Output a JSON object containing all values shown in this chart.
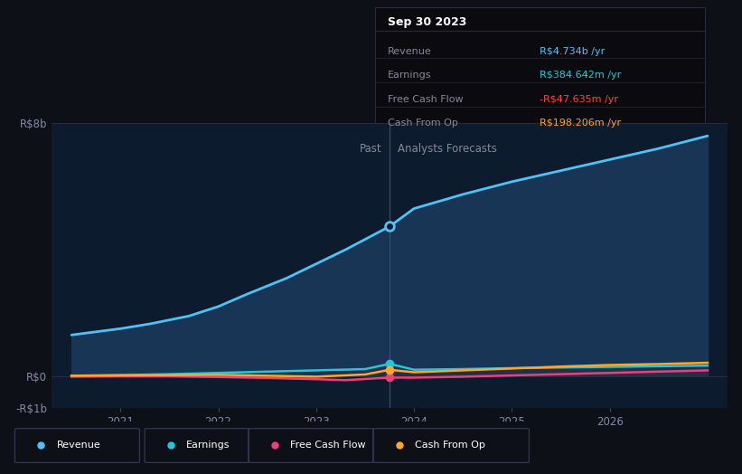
{
  "bg_color": "#0d1117",
  "plot_bg_color": "#0d1b2e",
  "title": "Sep 30 2023",
  "past_label": "Past",
  "forecast_label": "Analysts Forecasts",
  "divider_x": 2023.75,
  "tooltip": {
    "date": "Sep 30 2023",
    "revenue_label": "Revenue",
    "revenue_value": "R$4.734b",
    "earnings_label": "Earnings",
    "earnings_value": "R$384.642m",
    "fcf_label": "Free Cash Flow",
    "fcf_value": "-R$47.635m",
    "cashop_label": "Cash From Op",
    "cashop_value": "R$198.206m"
  },
  "ylim": [
    -1000000000.0,
    8000000000.0
  ],
  "yticks": [
    -1000000000.0,
    0,
    8000000000.0
  ],
  "ytick_labels": [
    "-R$1b",
    "R$0",
    "R$8b"
  ],
  "xlim": [
    2020.3,
    2027.2
  ],
  "xticks": [
    2021,
    2022,
    2023,
    2024,
    2025,
    2026
  ],
  "revenue": {
    "color": "#4fc3f7",
    "fill_color": "#1a3a5c",
    "label": "Revenue",
    "x": [
      2020.5,
      2021.0,
      2021.3,
      2021.7,
      2022.0,
      2022.3,
      2022.7,
      2023.0,
      2023.3,
      2023.75,
      2024.0,
      2024.5,
      2025.0,
      2025.5,
      2026.0,
      2026.5,
      2027.0
    ],
    "y": [
      1300000000.0,
      1500000000.0,
      1650000000.0,
      1900000000.0,
      2200000000.0,
      2600000000.0,
      3100000000.0,
      3550000000.0,
      4000000000.0,
      4734000000.0,
      5300000000.0,
      5750000000.0,
      6150000000.0,
      6500000000.0,
      6850000000.0,
      7200000000.0,
      7600000000.0
    ]
  },
  "earnings": {
    "color": "#26c6da",
    "label": "Earnings",
    "x": [
      2020.5,
      2021.0,
      2021.5,
      2022.0,
      2022.5,
      2023.0,
      2023.5,
      2023.75,
      2024.0,
      2024.5,
      2025.0,
      2025.5,
      2026.0,
      2026.5,
      2027.0
    ],
    "y": [
      10000000.0,
      30000000.0,
      60000000.0,
      100000000.0,
      140000000.0,
      180000000.0,
      220000000.0,
      384600000.0,
      200000000.0,
      220000000.0,
      250000000.0,
      270000000.0,
      290000000.0,
      310000000.0,
      330000000.0
    ]
  },
  "fcf": {
    "color": "#ec407a",
    "label": "Free Cash Flow",
    "x": [
      2020.5,
      2021.0,
      2021.5,
      2022.0,
      2022.5,
      2023.0,
      2023.3,
      2023.75,
      2024.0,
      2024.5,
      2025.0,
      2025.5,
      2026.0,
      2026.5,
      2027.0
    ],
    "y": [
      -20000000.0,
      -10000000.0,
      -10000000.0,
      -30000000.0,
      -60000000.0,
      -100000000.0,
      -130000000.0,
      -47600000.0,
      -50000000.0,
      -20000000.0,
      20000000.0,
      60000000.0,
      100000000.0,
      140000000.0,
      180000000.0
    ]
  },
  "cashop": {
    "color": "#ffa726",
    "label": "Cash From Op",
    "x": [
      2020.5,
      2021.0,
      2021.5,
      2022.0,
      2022.5,
      2023.0,
      2023.5,
      2023.75,
      2024.0,
      2024.5,
      2025.0,
      2025.5,
      2026.0,
      2026.5,
      2027.0
    ],
    "y": [
      10000000.0,
      20000000.0,
      30000000.0,
      40000000.0,
      10000000.0,
      -20000000.0,
      50000000.0,
      198200000.0,
      120000000.0,
      180000000.0,
      240000000.0,
      300000000.0,
      350000000.0,
      380000000.0,
      420000000.0
    ]
  },
  "grey_fill": {
    "color": "#2a2a3a"
  },
  "marker_x": 2023.75,
  "revenue_marker_y": 4734000000.0,
  "earnings_marker_y": 384600000.0,
  "fcf_marker_y": -47600000.0,
  "cashop_marker_y": 198200000.0
}
